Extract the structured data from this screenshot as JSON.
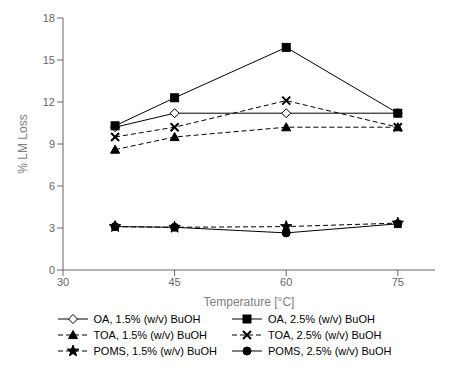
{
  "chart_data": {
    "type": "line",
    "x": [
      37,
      45,
      60,
      75
    ],
    "series": [
      {
        "name": "OA, 1.5% (w/v) BuOH",
        "color": "#000000",
        "values": [
          10.2,
          11.2,
          11.2,
          11.2
        ],
        "marker": "diamond_open",
        "line_style": "solid"
      },
      {
        "name": "OA, 2.5% (w/v) BuOH",
        "color": "#000000",
        "values": [
          10.3,
          12.3,
          15.9,
          11.2
        ],
        "marker": "square_filled",
        "line_style": "solid"
      },
      {
        "name": "TOA, 1.5% (w/v) BuOH",
        "color": "#000000",
        "values": [
          8.6,
          9.5,
          10.2,
          10.2
        ],
        "marker": "triangle_filled",
        "line_style": "dashed"
      },
      {
        "name": "TOA, 2.5% (w/v) BuOH",
        "color": "#000000",
        "values": [
          9.5,
          10.2,
          12.1,
          10.2
        ],
        "marker": "x",
        "line_style": "dashed"
      },
      {
        "name": "POMS, 1.5% (w/v) BuOH",
        "color": "#000000",
        "values": [
          3.1,
          3.05,
          3.1,
          3.35
        ],
        "marker": "asterisk",
        "line_style": "dashed"
      },
      {
        "name": "POMS, 2.5% (w/v) BuOH",
        "color": "#000000",
        "values": [
          3.1,
          3.05,
          2.65,
          3.3
        ],
        "marker": "circle_filled",
        "line_style": "solid"
      }
    ],
    "xlim": [
      30,
      80
    ],
    "ylim": [
      0,
      18
    ],
    "xticks": [
      30,
      45,
      60,
      75
    ],
    "yticks": [
      0,
      3,
      6,
      9,
      12,
      15,
      18
    ],
    "xlabel": "Temperature [°C]",
    "ylabel": "% LM Loss",
    "legend": "bottom",
    "grid": false
  }
}
